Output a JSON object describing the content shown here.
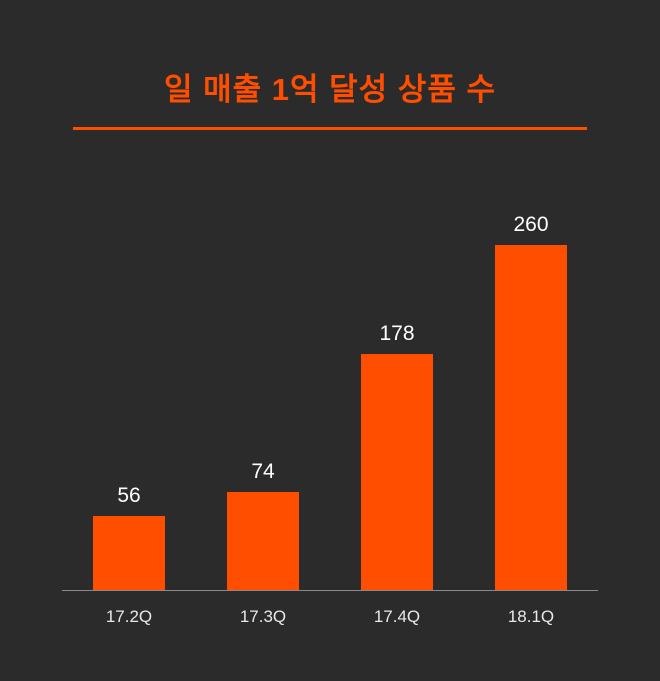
{
  "title": "일 매출 1억 달성 상품 수",
  "colors": {
    "background": "#2b2b2b",
    "accent": "#ff4e00",
    "bar": "#ff4e00",
    "value_text": "#ffffff",
    "category_text": "#e8e8e8",
    "axis_line": "#8a8a8a"
  },
  "chart_data": {
    "type": "bar",
    "title": "일 매출 1억 달성 상품 수",
    "categories": [
      "17.2Q",
      "17.3Q",
      "17.4Q",
      "18.1Q"
    ],
    "values": [
      56,
      74,
      178,
      260
    ],
    "xlabel": "",
    "ylabel": "",
    "ylim": [
      0,
      280
    ],
    "grid": false,
    "legend": false,
    "bar_color": "#ff4e00",
    "value_labels_shown": true,
    "background": "#2b2b2b"
  }
}
